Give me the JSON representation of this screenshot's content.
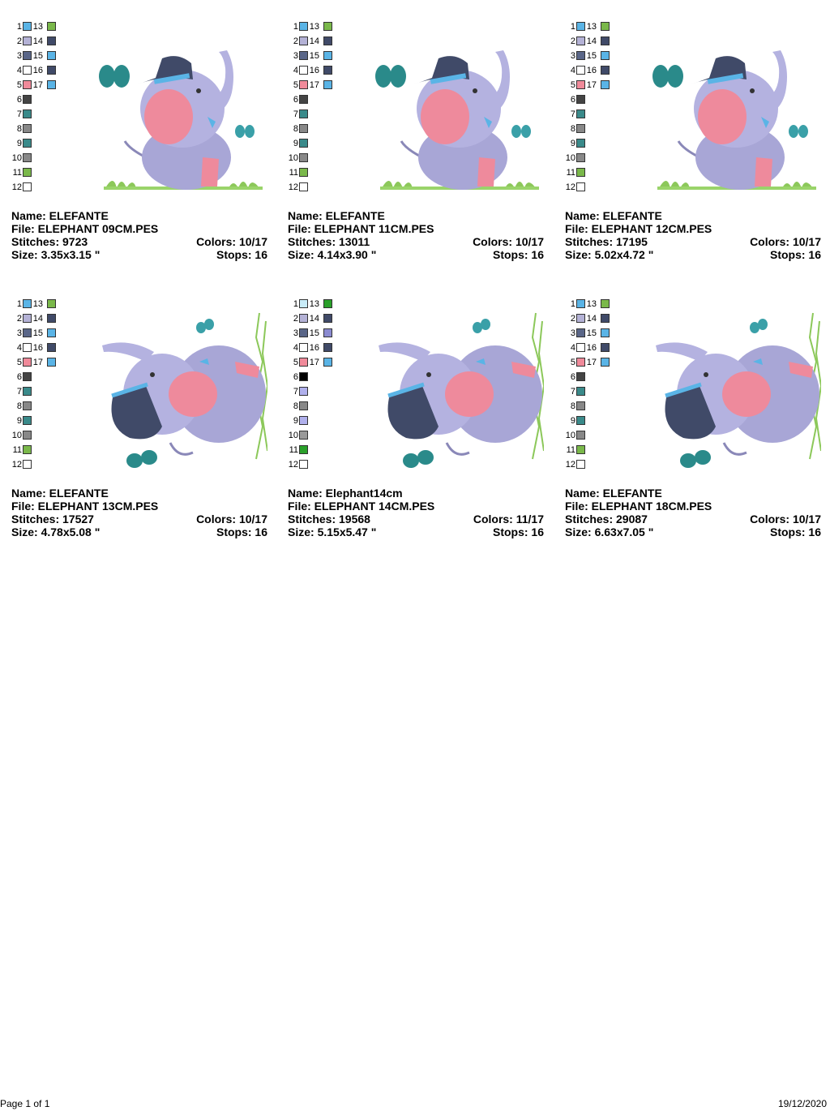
{
  "designs": [
    {
      "name_label": "Name: ELEFANTE",
      "file_label": "File: ELEPHANT 09CM.PES",
      "stitches_label": "Stitches: 9723",
      "colors_label": "Colors: 10/17",
      "size_label": "Size: 3.35x3.15 \"",
      "stops_label": "Stops: 16",
      "pose": "sitting",
      "palette_left": [
        "1",
        "2",
        "3",
        "4",
        "5",
        "6",
        "7",
        "8",
        "9",
        "10",
        "11",
        "12"
      ],
      "palette_right": [
        "13",
        "14",
        "15",
        "16",
        "17"
      ],
      "colors_left": [
        "#5ab4e6",
        "#b4b2d6",
        "#5a6688",
        "#ffffff",
        "#f08a9a",
        "#444444",
        "#3a8a8a",
        "#888888",
        "#3a8a8a",
        "#888888",
        "#7ab84a",
        "#ffffff"
      ],
      "colors_right": [
        "#7ab84a",
        "#404a68",
        "#5ab4e6",
        "#404a68",
        "#5ab4e6"
      ]
    },
    {
      "name_label": "Name: ELEFANTE",
      "file_label": "File: ELEPHANT 11CM.PES",
      "stitches_label": "Stitches: 13011",
      "colors_label": "Colors: 10/17",
      "size_label": "Size: 4.14x3.90 \"",
      "stops_label": "Stops: 16",
      "pose": "sitting",
      "palette_left": [
        "1",
        "2",
        "3",
        "4",
        "5",
        "6",
        "7",
        "8",
        "9",
        "10",
        "11",
        "12"
      ],
      "palette_right": [
        "13",
        "14",
        "15",
        "16",
        "17"
      ],
      "colors_left": [
        "#5ab4e6",
        "#b4b2d6",
        "#5a6688",
        "#ffffff",
        "#f08a9a",
        "#444444",
        "#3a8a8a",
        "#888888",
        "#3a8a8a",
        "#888888",
        "#7ab84a",
        "#ffffff"
      ],
      "colors_right": [
        "#7ab84a",
        "#404a68",
        "#5ab4e6",
        "#404a68",
        "#5ab4e6"
      ]
    },
    {
      "name_label": "Name: ELEFANTE",
      "file_label": "File: ELEPHANT 12CM.PES",
      "stitches_label": "Stitches: 17195",
      "colors_label": "Colors: 10/17",
      "size_label": "Size: 5.02x4.72 \"",
      "stops_label": "Stops: 16",
      "pose": "sitting",
      "palette_left": [
        "1",
        "2",
        "3",
        "4",
        "5",
        "6",
        "7",
        "8",
        "9",
        "10",
        "11",
        "12"
      ],
      "palette_right": [
        "13",
        "14",
        "15",
        "16",
        "17"
      ],
      "colors_left": [
        "#5ab4e6",
        "#b4b2d6",
        "#5a6688",
        "#ffffff",
        "#f08a9a",
        "#444444",
        "#3a8a8a",
        "#888888",
        "#3a8a8a",
        "#888888",
        "#7ab84a",
        "#ffffff"
      ],
      "colors_right": [
        "#7ab84a",
        "#404a68",
        "#5ab4e6",
        "#404a68",
        "#5ab4e6"
      ]
    },
    {
      "name_label": "Name: ELEFANTE",
      "file_label": "File: ELEPHANT 13CM.PES",
      "stitches_label": "Stitches: 17527",
      "colors_label": "Colors: 10/17",
      "size_label": "Size: 4.78x5.08 \"",
      "stops_label": "Stops: 16",
      "pose": "lying",
      "palette_left": [
        "1",
        "2",
        "3",
        "4",
        "5",
        "6",
        "7",
        "8",
        "9",
        "10",
        "11",
        "12"
      ],
      "palette_right": [
        "13",
        "14",
        "15",
        "16",
        "17"
      ],
      "colors_left": [
        "#5ab4e6",
        "#b4b2d6",
        "#5a6688",
        "#ffffff",
        "#f08a9a",
        "#444444",
        "#3a8a8a",
        "#888888",
        "#3a8a8a",
        "#888888",
        "#7ab84a",
        "#ffffff"
      ],
      "colors_right": [
        "#7ab84a",
        "#404a68",
        "#5ab4e6",
        "#404a68",
        "#5ab4e6"
      ]
    },
    {
      "name_label": "Name: Elephant14cm",
      "file_label": "File: ELEPHANT 14CM.PES",
      "stitches_label": "Stitches: 19568",
      "colors_label": "Colors: 11/17",
      "size_label": "Size: 5.15x5.47 \"",
      "stops_label": "Stops: 16",
      "pose": "lying",
      "palette_left": [
        "1",
        "2",
        "3",
        "4",
        "5",
        "6",
        "7",
        "8",
        "9",
        "10",
        "11",
        "12"
      ],
      "palette_right": [
        "13",
        "14",
        "15",
        "16",
        "17"
      ],
      "colors_left": [
        "#c8ecf8",
        "#b4b2d6",
        "#5a6688",
        "#ffffff",
        "#f08a9a",
        "#000000",
        "#b0b0ec",
        "#888888",
        "#b0b0ec",
        "#999999",
        "#2aa02a",
        "#ffffff"
      ],
      "colors_right": [
        "#2aa02a",
        "#404a68",
        "#8a8ad0",
        "#404a68",
        "#5ab4e6"
      ]
    },
    {
      "name_label": "Name: ELEFANTE",
      "file_label": "File: ELEPHANT 18CM.PES",
      "stitches_label": "Stitches: 29087",
      "colors_label": "Colors: 10/17",
      "size_label": "Size: 6.63x7.05 \"",
      "stops_label": "Stops: 16",
      "pose": "lying",
      "palette_left": [
        "1",
        "2",
        "3",
        "4",
        "5",
        "6",
        "7",
        "8",
        "9",
        "10",
        "11",
        "12"
      ],
      "palette_right": [
        "13",
        "14",
        "15",
        "16",
        "17"
      ],
      "colors_left": [
        "#5ab4e6",
        "#b4b2d6",
        "#5a6688",
        "#ffffff",
        "#f08a9a",
        "#444444",
        "#3a8a8a",
        "#888888",
        "#3a8a8a",
        "#888888",
        "#7ab84a",
        "#ffffff"
      ],
      "colors_right": [
        "#7ab84a",
        "#404a68",
        "#5ab4e6",
        "#404a68",
        "#5ab4e6"
      ]
    }
  ],
  "footer": {
    "page_label": "Page 1 of 1",
    "date_label": "19/12/2020"
  }
}
